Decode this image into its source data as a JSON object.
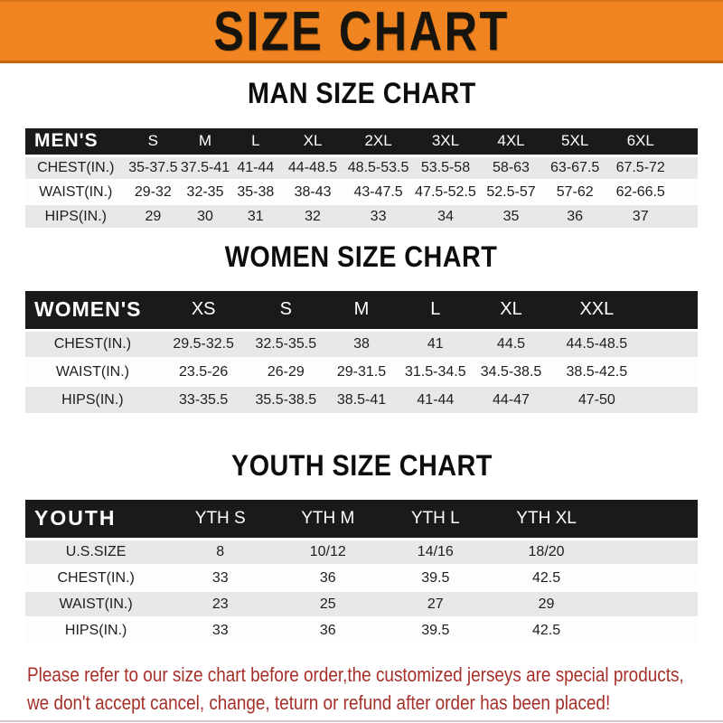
{
  "banner": {
    "title": "SIZE CHART"
  },
  "colors": {
    "orange": "#F08420",
    "band": "#1A1A1A",
    "stripe": "#E8E8E8",
    "red": "#A5302A"
  },
  "sections": [
    {
      "id": "men",
      "title": "MAN SIZE CHART",
      "header_label": "MEN'S",
      "columns": [
        "S",
        "M",
        "L",
        "XL",
        "2XL",
        "3XL",
        "4XL",
        "5XL",
        "6XL"
      ],
      "rows": [
        {
          "label": "CHEST(IN.)",
          "values": [
            "35-37.5",
            "37.5-41",
            "41-44",
            "44-48.5",
            "48.5-53.5",
            "53.5-58",
            "58-63",
            "63-67.5",
            "67.5-72"
          ]
        },
        {
          "label": "WAIST(IN.)",
          "values": [
            "29-32",
            "32-35",
            "35-38",
            "38-43",
            "43-47.5",
            "47.5-52.5",
            "52.5-57",
            "57-62",
            "62-66.5"
          ]
        },
        {
          "label": "HIPS(IN.)",
          "values": [
            "29",
            "30",
            "31",
            "32",
            "33",
            "34",
            "35",
            "36",
            "37"
          ]
        }
      ]
    },
    {
      "id": "women",
      "title": "WOMEN SIZE CHART",
      "header_label": "WOMEN'S",
      "columns": [
        "XS",
        "S",
        "M",
        "L",
        "XL",
        "XXL"
      ],
      "rows": [
        {
          "label": "CHEST(IN.)",
          "values": [
            "29.5-32.5",
            "32.5-35.5",
            "38",
            "41",
            "44.5",
            "44.5-48.5"
          ]
        },
        {
          "label": "WAIST(IN.)",
          "values": [
            "23.5-26",
            "26-29",
            "29-31.5",
            "31.5-34.5",
            "34.5-38.5",
            "38.5-42.5"
          ]
        },
        {
          "label": "HIPS(IN.)",
          "values": [
            "33-35.5",
            "35.5-38.5",
            "38.5-41",
            "41-44",
            "44-47",
            "47-50"
          ]
        }
      ]
    },
    {
      "id": "youth",
      "title": "YOUTH SIZE CHART",
      "header_label": "YOUTH",
      "columns": [
        "YTH S",
        "YTH M",
        "YTH L",
        "YTH XL"
      ],
      "rows": [
        {
          "label": "U.S.SIZE",
          "values": [
            "8",
            "10/12",
            "14/16",
            "18/20"
          ]
        },
        {
          "label": "CHEST(IN.)",
          "values": [
            "33",
            "36",
            "39.5",
            "42.5"
          ]
        },
        {
          "label": "WAIST(IN.)",
          "values": [
            "23",
            "25",
            "27",
            "29"
          ]
        },
        {
          "label": "HIPS(IN.)",
          "values": [
            "33",
            "36",
            "39.5",
            "42.5"
          ]
        }
      ]
    }
  ],
  "footer": {
    "lines": [
      "Please refer to our size chart before order,the customized jerseys are special products,",
      "we don't accept cancel, change, teturn or refund after order has been placed!"
    ]
  }
}
